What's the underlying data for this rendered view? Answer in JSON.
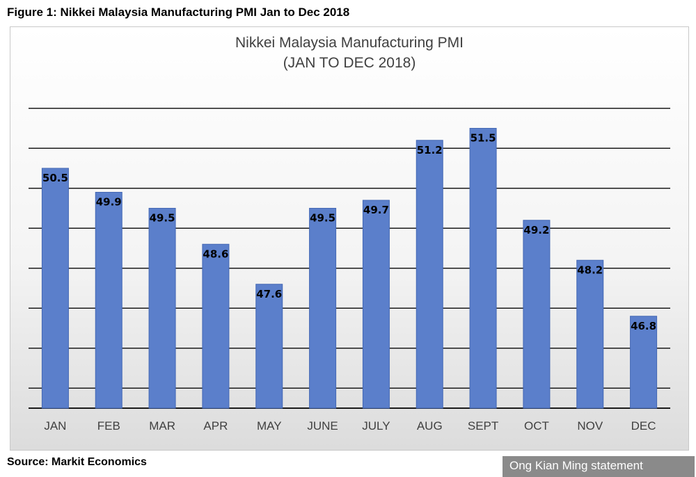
{
  "figure": {
    "caption": "Figure 1: Nikkei Malaysia Manufacturing PMI Jan to Dec 2018",
    "source": "Source: Markit Economics",
    "credit": "Ong Kian Ming statement"
  },
  "chart_data": {
    "type": "bar",
    "title": "Nikkei Malaysia Manufacturing PMI",
    "subtitle": "(JAN TO DEC 2018)",
    "categories": [
      "JAN",
      "FEB",
      "MAR",
      "APR",
      "MAY",
      "JUNE",
      "JULY",
      "AUG",
      "SEPT",
      "OCT",
      "NOV",
      "DEC"
    ],
    "values": [
      50.5,
      49.9,
      49.5,
      48.6,
      47.6,
      49.5,
      49.7,
      51.2,
      51.5,
      49.2,
      48.2,
      46.8
    ],
    "ylim": [
      44.5,
      52.5
    ],
    "grid": true,
    "legend": "none",
    "colors": {
      "bar": "#5b7fcb",
      "bar_edge": "#4468b4",
      "grid": "#1a1a1a"
    }
  }
}
